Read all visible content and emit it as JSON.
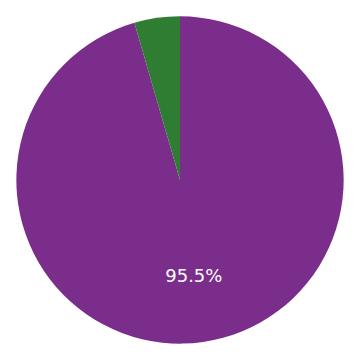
{
  "chart_data": {
    "type": "pie",
    "values": [
      95.5,
      4.5
    ],
    "colors": [
      "#7B2D8B",
      "#2E7D32"
    ],
    "value_labels": [
      "95.5%",
      null
    ]
  }
}
